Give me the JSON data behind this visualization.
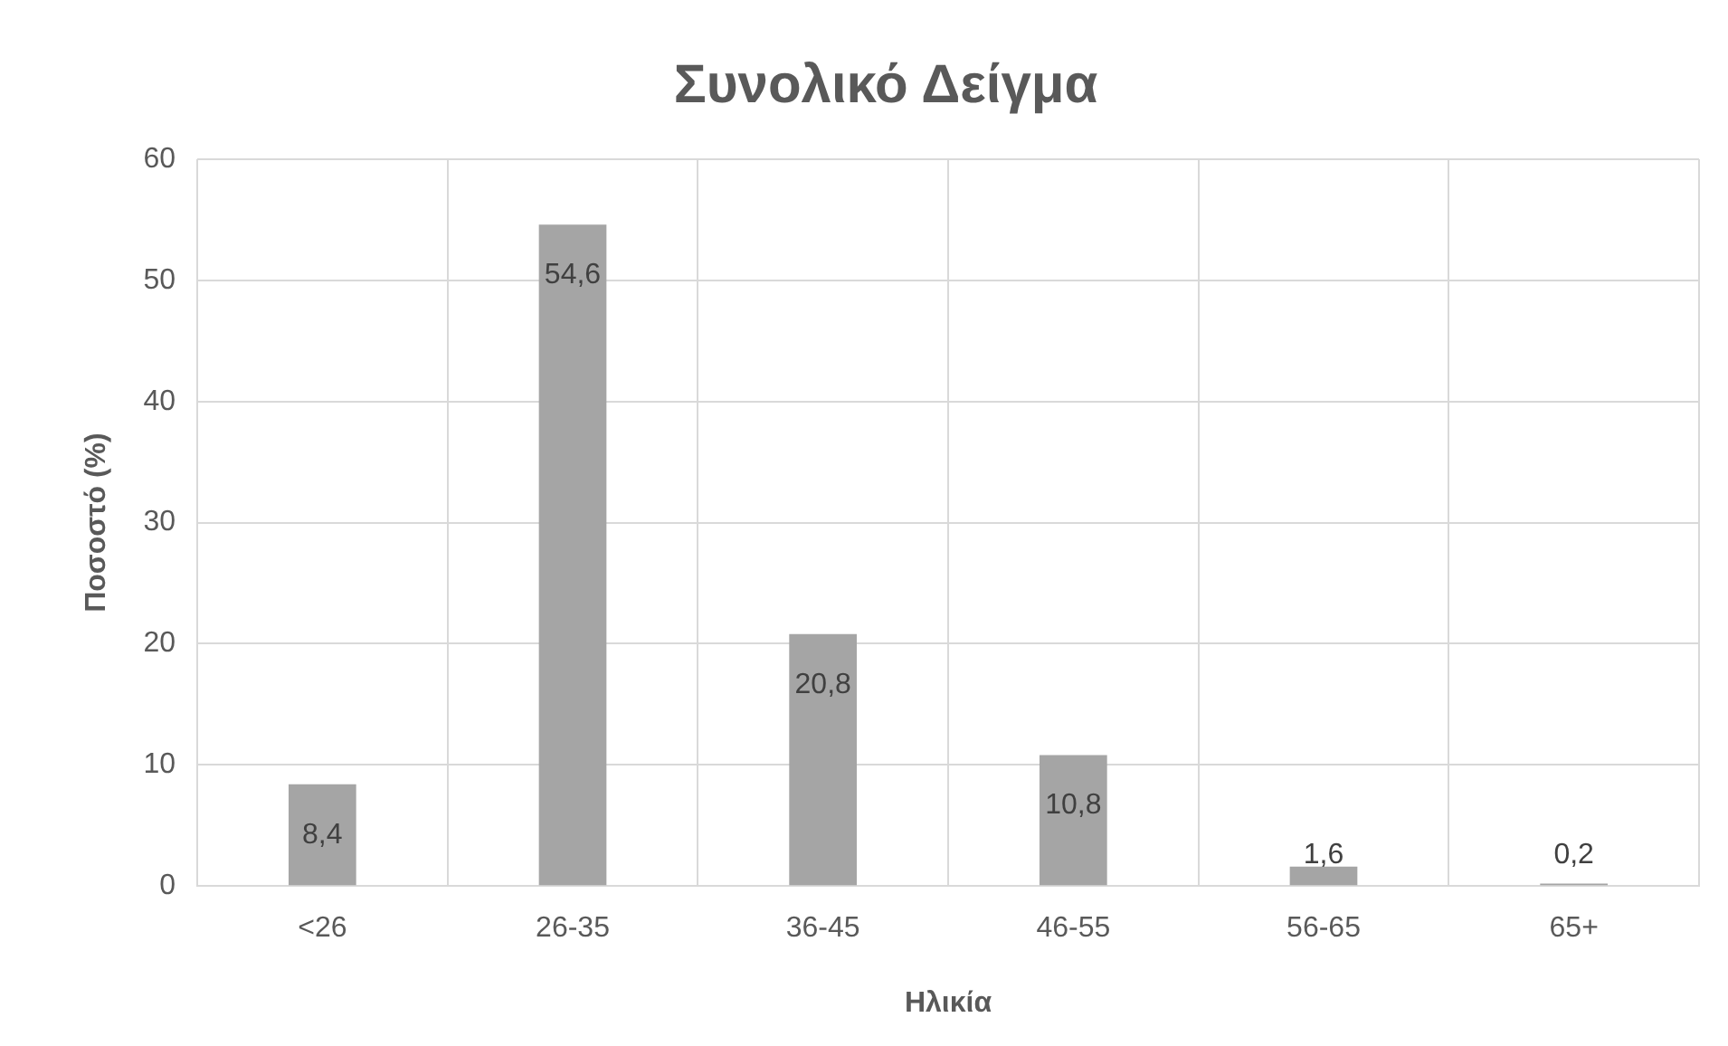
{
  "chart_data": {
    "type": "bar",
    "title": "Συνολικό Δείγμα",
    "xlabel": "Ηλικία",
    "ylabel": "Ποσοστό (%)",
    "categories": [
      "<26",
      "26-35",
      "36-45",
      "46-55",
      "56-65",
      "65+"
    ],
    "values": [
      8.4,
      54.6,
      20.8,
      10.8,
      1.6,
      0.2
    ],
    "value_labels": [
      "8,4",
      "54,6",
      "20,8",
      "10,8",
      "1,6",
      "0,2"
    ],
    "color": "#a5a5a5",
    "ylim": [
      0,
      60
    ],
    "yticks": [
      0,
      10,
      20,
      30,
      40,
      50,
      60
    ],
    "grid": true,
    "legend": false
  }
}
